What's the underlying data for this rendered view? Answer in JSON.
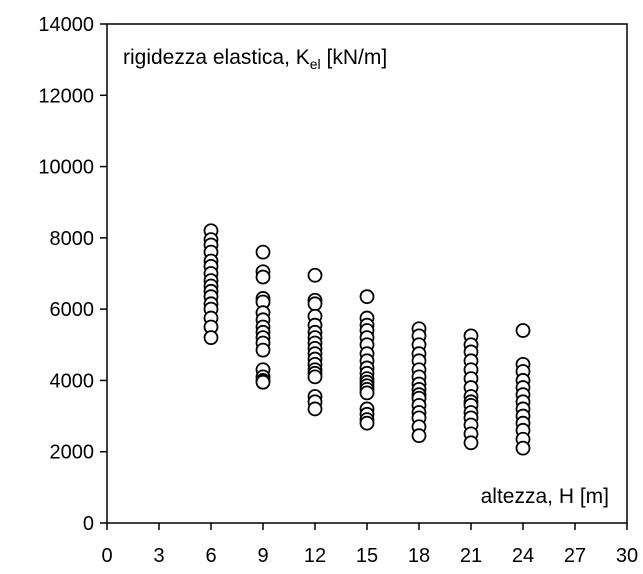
{
  "chart_data": {
    "type": "scatter",
    "title": "rigidezza elastica, K",
    "title_subscript": "el",
    "title_suffix": " [kN/m]",
    "xlabel": "altezza, H [m]",
    "ylabel": "",
    "xlim": [
      0,
      30
    ],
    "ylim": [
      0,
      14000
    ],
    "xticks": [
      0,
      3,
      6,
      9,
      12,
      15,
      18,
      21,
      24,
      27,
      30
    ],
    "yticks": [
      0,
      2000,
      4000,
      6000,
      8000,
      10000,
      12000,
      14000
    ],
    "grid": false,
    "legend": "none",
    "marker": "open-circle",
    "series": [
      {
        "points": [
          [
            6,
            8200
          ],
          [
            6,
            7950
          ],
          [
            6,
            7800
          ],
          [
            6,
            7600
          ],
          [
            6,
            7350
          ],
          [
            6,
            7200
          ],
          [
            6,
            7000
          ],
          [
            6,
            6800
          ],
          [
            6,
            6650
          ],
          [
            6,
            6500
          ],
          [
            6,
            6350
          ],
          [
            6,
            6150
          ],
          [
            6,
            6000
          ],
          [
            6,
            5750
          ],
          [
            6,
            5500
          ],
          [
            6,
            5200
          ],
          [
            9,
            7600
          ],
          [
            9,
            7050
          ],
          [
            9,
            6900
          ],
          [
            9,
            6300
          ],
          [
            9,
            6200
          ],
          [
            9,
            5900
          ],
          [
            9,
            5700
          ],
          [
            9,
            5500
          ],
          [
            9,
            5350
          ],
          [
            9,
            5200
          ],
          [
            9,
            5050
          ],
          [
            9,
            4850
          ],
          [
            9,
            4300
          ],
          [
            9,
            4100
          ],
          [
            9,
            4000
          ],
          [
            9,
            3950
          ],
          [
            12,
            6950
          ],
          [
            12,
            6250
          ],
          [
            12,
            6150
          ],
          [
            12,
            5800
          ],
          [
            12,
            5550
          ],
          [
            12,
            5350
          ],
          [
            12,
            5200
          ],
          [
            12,
            5050
          ],
          [
            12,
            4900
          ],
          [
            12,
            4750
          ],
          [
            12,
            4600
          ],
          [
            12,
            4450
          ],
          [
            12,
            4300
          ],
          [
            12,
            4200
          ],
          [
            12,
            4100
          ],
          [
            12,
            3550
          ],
          [
            12,
            3400
          ],
          [
            12,
            3200
          ],
          [
            15,
            6350
          ],
          [
            15,
            5750
          ],
          [
            15,
            5550
          ],
          [
            15,
            5400
          ],
          [
            15,
            5200
          ],
          [
            15,
            5000
          ],
          [
            15,
            4750
          ],
          [
            15,
            4550
          ],
          [
            15,
            4350
          ],
          [
            15,
            4200
          ],
          [
            15,
            4050
          ],
          [
            15,
            3950
          ],
          [
            15,
            3850
          ],
          [
            15,
            3750
          ],
          [
            15,
            3650
          ],
          [
            15,
            3200
          ],
          [
            15,
            3050
          ],
          [
            15,
            2900
          ],
          [
            15,
            2800
          ],
          [
            18,
            5450
          ],
          [
            18,
            5250
          ],
          [
            18,
            5000
          ],
          [
            18,
            4750
          ],
          [
            18,
            4550
          ],
          [
            18,
            4300
          ],
          [
            18,
            4100
          ],
          [
            18,
            3900
          ],
          [
            18,
            3750
          ],
          [
            18,
            3600
          ],
          [
            18,
            3500
          ],
          [
            18,
            3300
          ],
          [
            18,
            3100
          ],
          [
            18,
            2950
          ],
          [
            18,
            2700
          ],
          [
            18,
            2450
          ],
          [
            21,
            5250
          ],
          [
            21,
            5000
          ],
          [
            21,
            4800
          ],
          [
            21,
            4550
          ],
          [
            21,
            4300
          ],
          [
            21,
            4050
          ],
          [
            21,
            3800
          ],
          [
            21,
            3550
          ],
          [
            21,
            3400
          ],
          [
            21,
            3300
          ],
          [
            21,
            3100
          ],
          [
            21,
            2950
          ],
          [
            21,
            2750
          ],
          [
            21,
            2500
          ],
          [
            21,
            2250
          ],
          [
            24,
            5400
          ],
          [
            24,
            4450
          ],
          [
            24,
            4250
          ],
          [
            24,
            4000
          ],
          [
            24,
            3800
          ],
          [
            24,
            3600
          ],
          [
            24,
            3400
          ],
          [
            24,
            3200
          ],
          [
            24,
            3000
          ],
          [
            24,
            2800
          ],
          [
            24,
            2600
          ],
          [
            24,
            2350
          ],
          [
            24,
            2100
          ]
        ]
      }
    ]
  }
}
